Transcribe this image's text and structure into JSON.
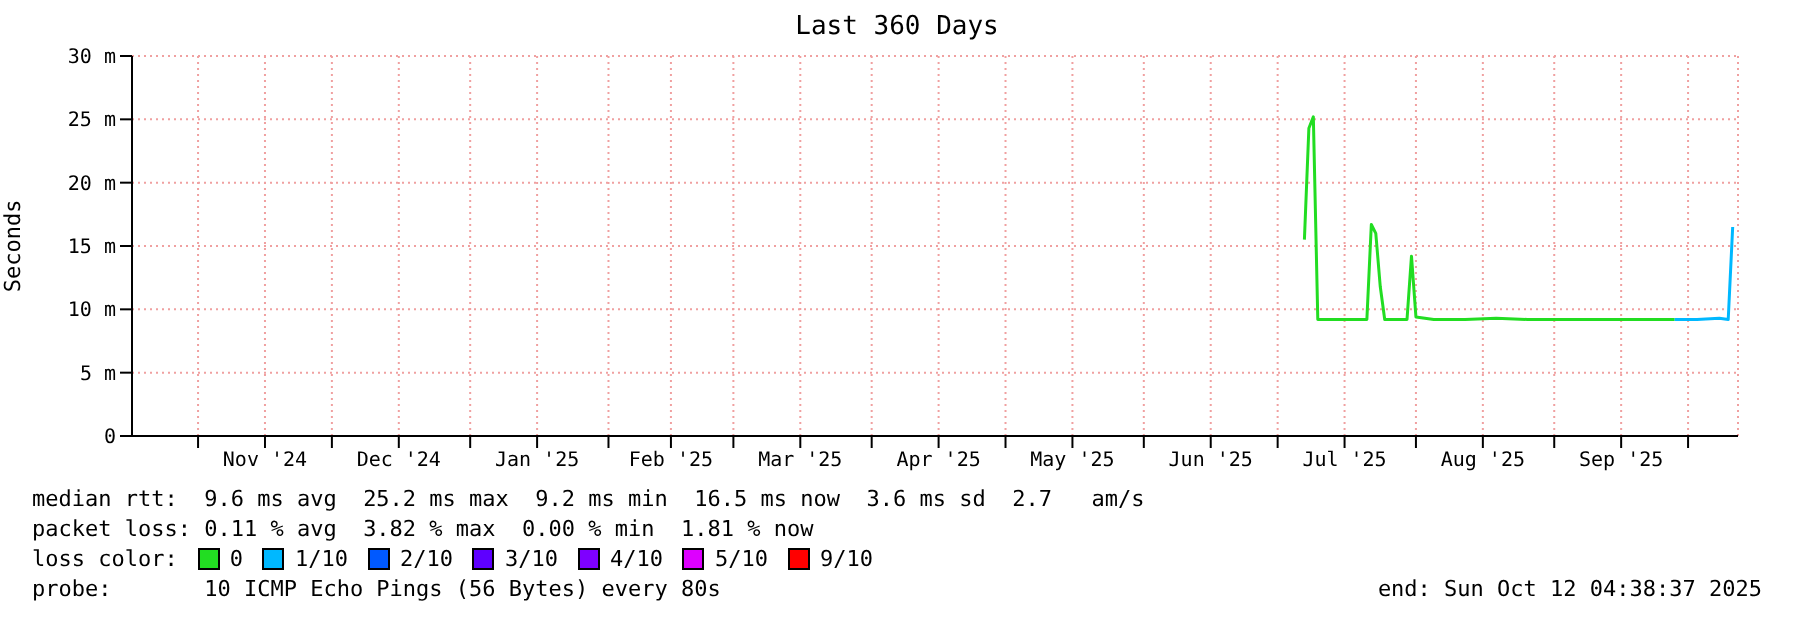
{
  "chart_data": {
    "type": "line",
    "title": "Last 360 Days",
    "ylabel": "Seconds",
    "legend_title": "loss color:",
    "legend": "bottom",
    "grid": true,
    "xlim": [
      "2024-10-17T04:38",
      "2025-10-12T04:38"
    ],
    "xticks": [
      {
        "value": "2024-11-01",
        "label": null
      },
      {
        "value": "2024-11-16",
        "label": "Nov '24"
      },
      {
        "value": "2024-12-01",
        "label": null
      },
      {
        "value": "2024-12-16",
        "label": "Dec '24"
      },
      {
        "value": "2025-01-01",
        "label": null
      },
      {
        "value": "2025-01-16",
        "label": "Jan '25"
      },
      {
        "value": "2025-02-01",
        "label": null
      },
      {
        "value": "2025-02-15",
        "label": "Feb '25"
      },
      {
        "value": "2025-03-01",
        "label": null
      },
      {
        "value": "2025-03-16",
        "label": "Mar '25"
      },
      {
        "value": "2025-04-01",
        "label": null
      },
      {
        "value": "2025-04-16",
        "label": "Apr '25"
      },
      {
        "value": "2025-05-01",
        "label": null
      },
      {
        "value": "2025-05-16",
        "label": "May '25"
      },
      {
        "value": "2025-06-01",
        "label": null
      },
      {
        "value": "2025-06-16",
        "label": "Jun '25"
      },
      {
        "value": "2025-07-01",
        "label": null
      },
      {
        "value": "2025-07-16",
        "label": "Jul '25"
      },
      {
        "value": "2025-08-01",
        "label": null
      },
      {
        "value": "2025-08-16",
        "label": "Aug '25"
      },
      {
        "value": "2025-09-01",
        "label": null
      },
      {
        "value": "2025-09-16",
        "label": "Sep '25"
      },
      {
        "value": "2025-10-01",
        "label": null
      }
    ],
    "ylim": [
      0,
      30
    ],
    "yticks": [
      {
        "value": 0,
        "label": "0"
      },
      {
        "value": 5,
        "label": "5 m"
      },
      {
        "value": 10,
        "label": "10 m"
      },
      {
        "value": 15,
        "label": "15 m"
      },
      {
        "value": 20,
        "label": "20 m"
      },
      {
        "value": 25,
        "label": "25 m"
      },
      {
        "value": 30,
        "label": "30 m"
      }
    ],
    "series": [
      {
        "name": "0",
        "color": "#22dd22",
        "x": [
          "2025-07-07",
          "2025-07-08",
          "2025-07-09",
          "2025-07-10",
          "2025-07-15",
          "2025-07-21",
          "2025-07-22",
          "2025-07-23",
          "2025-07-24",
          "2025-07-25",
          "2025-07-29",
          "2025-07-30",
          "2025-07-31",
          "2025-08-01",
          "2025-08-05",
          "2025-08-12",
          "2025-08-19",
          "2025-08-26",
          "2025-09-02",
          "2025-09-09",
          "2025-09-16",
          "2025-09-23",
          "2025-09-28"
        ],
        "values": [
          15.5,
          24.3,
          25.2,
          9.2,
          9.2,
          9.2,
          16.7,
          16.0,
          11.8,
          9.2,
          9.2,
          9.2,
          14.2,
          9.4,
          9.2,
          9.2,
          9.3,
          9.2,
          9.2,
          9.2,
          9.2,
          9.2,
          9.2
        ]
      },
      {
        "name": "1/10",
        "color": "#00b8ff",
        "x": [
          "2025-09-28",
          "2025-10-03",
          "2025-10-08",
          "2025-10-10",
          "2025-10-11"
        ],
        "values": [
          9.2,
          9.2,
          9.3,
          9.2,
          16.5
        ]
      },
      {
        "name": "2/10",
        "color": "#0059ff"
      },
      {
        "name": "3/10",
        "color": "#5e00ff"
      },
      {
        "name": "4/10",
        "color": "#7e00ff"
      },
      {
        "name": "5/10",
        "color": "#dd00ff"
      },
      {
        "name": "9/10",
        "color": "#ff0000"
      }
    ],
    "annotations": [
      "median rtt:  9.6 ms avg  25.2 ms max  9.2 ms min  16.5 ms now  3.6 ms sd  2.7   am/s",
      "packet loss: 0.11 % avg  3.82 % max  0.00 % min  1.81 % now",
      "probe:       10 ICMP Echo Pings (56 Bytes) every 80s",
      "end: Sun Oct 12 04:38:37 2025"
    ]
  }
}
